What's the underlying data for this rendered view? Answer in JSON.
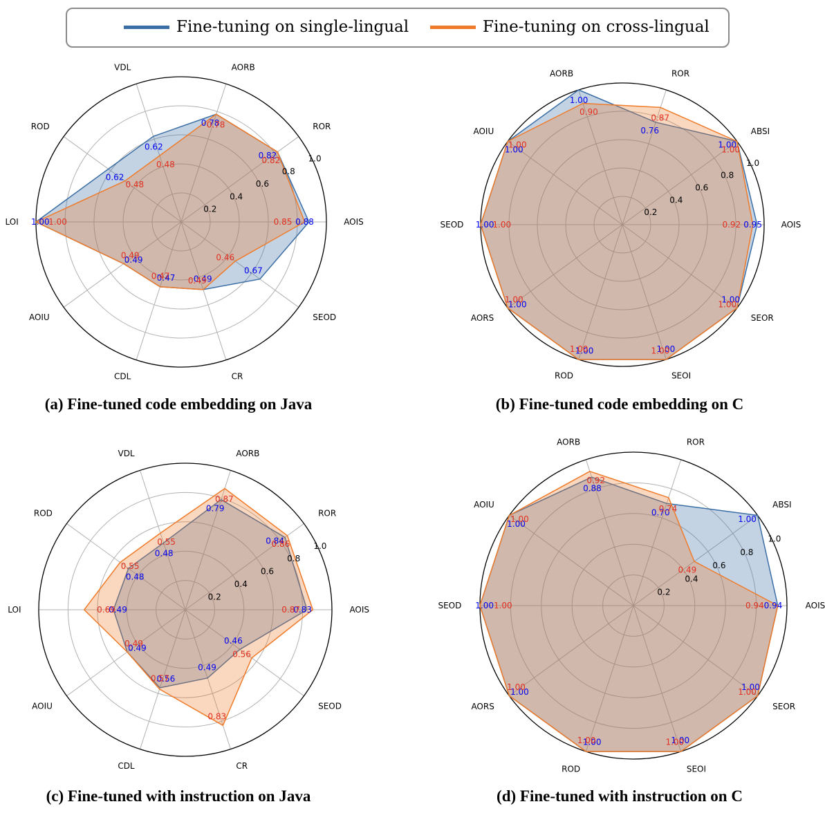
{
  "legend": {
    "single_label": "Fine-tuning on single-lingual",
    "cross_label": "Fine-tuning on cross-lingual",
    "single_color": "#3a6ea5",
    "cross_color": "#ef7b2a"
  },
  "chart_data": [
    {
      "type": "radar",
      "caption": "(a) Fine-tuned code embedding on Java",
      "axes": [
        "AOIS",
        "ROR",
        "AORB",
        "VDL",
        "ROD",
        "LOI",
        "AOIU",
        "CDL",
        "CR",
        "SEOD"
      ],
      "radial_ticks": [
        "0.2",
        "0.4",
        "0.6",
        "0.8",
        "1.0"
      ],
      "rlim": [
        0,
        1.0
      ],
      "series": [
        {
          "name": "Fine-tuning on single-lingual",
          "values": [
            0.88,
            0.82,
            0.78,
            0.62,
            0.62,
            1.0,
            0.49,
            0.47,
            0.49,
            0.67
          ],
          "labels": [
            "0.88",
            "0.82",
            "0.78",
            "0.62",
            "0.62",
            "1.00",
            "0.49",
            "0.47",
            "0.49",
            "0.67"
          ]
        },
        {
          "name": "Fine-tuning on cross-lingual",
          "values": [
            0.85,
            0.82,
            0.78,
            0.48,
            0.48,
            1.0,
            0.49,
            0.47,
            0.49,
            0.46
          ],
          "labels": [
            "0.85",
            "0.82",
            "0.78",
            "0.48",
            "0.48",
            "1.00",
            "0.49",
            "0.47",
            "0.49",
            "0.46"
          ]
        }
      ]
    },
    {
      "type": "radar",
      "caption": "(b) Fine-tuned code embedding on C",
      "axes": [
        "AOIS",
        "ABSI",
        "ROR",
        "AORB",
        "AOIU",
        "SEOD",
        "AORS",
        "ROD",
        "SEOI",
        "SEOR"
      ],
      "radial_ticks": [
        "0.2",
        "0.4",
        "0.6",
        "0.8",
        "1.0"
      ],
      "rlim": [
        0,
        1.0
      ],
      "series": [
        {
          "name": "Fine-tuning on single-lingual",
          "values": [
            0.95,
            1.0,
            0.76,
            1.0,
            1.0,
            1.0,
            1.0,
            1.0,
            1.0,
            1.0
          ],
          "labels": [
            "0.95",
            "1.00",
            "0.76",
            "1.00",
            "1.00",
            "1.00",
            "1.00",
            "1.00",
            "1.00",
            "1.00"
          ]
        },
        {
          "name": "Fine-tuning on cross-lingual",
          "values": [
            0.92,
            1.0,
            0.87,
            0.9,
            1.0,
            1.0,
            1.0,
            1.0,
            1.0,
            1.0
          ],
          "labels": [
            "0.92",
            "1.00",
            "0.87",
            "0.90",
            "1.00",
            "1.00",
            "1.00",
            "1.00",
            "1.00",
            "1.00"
          ]
        }
      ]
    },
    {
      "type": "radar",
      "caption": "(c) Fine-tuned with instruction on Java",
      "axes": [
        "AOIS",
        "ROR",
        "AORB",
        "VDL",
        "ROD",
        "LOI",
        "AOIU",
        "CDL",
        "CR",
        "SEOD"
      ],
      "radial_ticks": [
        "0.2",
        "0.4",
        "0.6",
        "0.8",
        "1.0"
      ],
      "rlim": [
        0,
        1.0
      ],
      "series": [
        {
          "name": "Fine-tuning on single-lingual",
          "values": [
            0.83,
            0.84,
            0.79,
            0.48,
            0.48,
            0.49,
            0.49,
            0.56,
            0.49,
            0.46
          ],
          "labels": [
            "0.83",
            "0.84",
            "0.79",
            "0.48",
            "0.48",
            "0.49",
            "0.49",
            "0.56",
            "0.49",
            "0.46"
          ]
        },
        {
          "name": "Fine-tuning on cross-lingual",
          "values": [
            0.87,
            0.86,
            0.87,
            0.55,
            0.55,
            0.69,
            0.49,
            0.57,
            0.83,
            0.56
          ],
          "labels": [
            "0.87",
            "0.86",
            "0.87",
            "0.55",
            "0.55",
            "0.69",
            "0.49",
            "0.57",
            "0.83",
            "0.56"
          ]
        }
      ]
    },
    {
      "type": "radar",
      "caption": "(d) Fine-tuned with instruction on C",
      "axes": [
        "AOIS",
        "ABSI",
        "ROR",
        "AORB",
        "AOIU",
        "SEOD",
        "AORS",
        "ROD",
        "SEOI",
        "SEOR"
      ],
      "radial_ticks": [
        "0.2",
        "0.4",
        "0.6",
        "0.8",
        "1.0"
      ],
      "rlim": [
        0,
        1.0
      ],
      "series": [
        {
          "name": "Fine-tuning on single-lingual",
          "values": [
            0.94,
            1.0,
            0.7,
            0.88,
            1.0,
            1.0,
            1.0,
            1.0,
            1.0,
            1.0
          ],
          "labels": [
            "0.94",
            "1.00",
            "0.70",
            "0.88",
            "1.00",
            "1.00",
            "1.00",
            "1.00",
            "1.00",
            "1.00"
          ]
        },
        {
          "name": "Fine-tuning on cross-lingual",
          "values": [
            0.94,
            0.49,
            0.74,
            0.92,
            1.0,
            1.0,
            1.0,
            1.0,
            1.0,
            1.0
          ],
          "labels": [
            "0.94",
            "0.49",
            "0.74",
            "0.92",
            "1.00",
            "1.00",
            "1.00",
            "1.00",
            "1.00",
            "1.00"
          ]
        }
      ]
    }
  ]
}
